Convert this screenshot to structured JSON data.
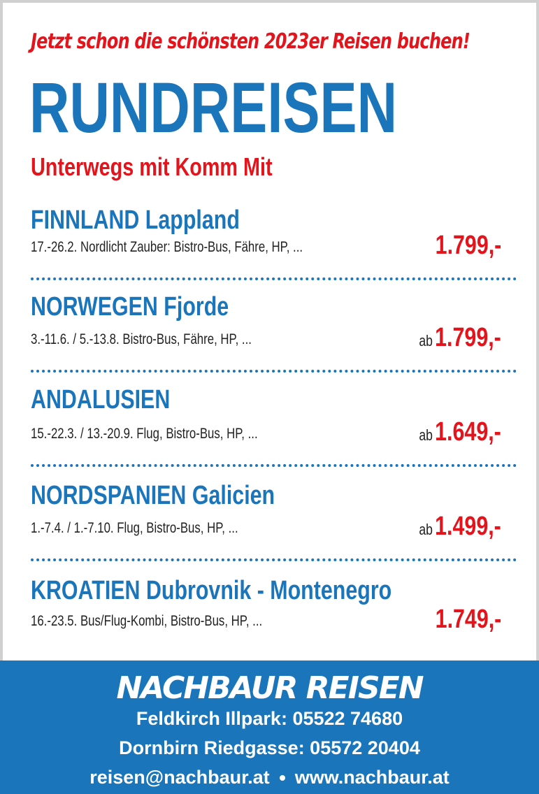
{
  "header": {
    "tagline": "Jetzt schon die schönsten 2023er Reisen buchen!",
    "title": "RUNDREISEN",
    "subtitle": "Unterwegs mit Komm Mit"
  },
  "trips": [
    {
      "name": "FINNLAND Lappland",
      "details": "17.-26.2. Nordlicht Zauber: Bistro-Bus, Fähre, HP, ...",
      "price": "1.799,-"
    },
    {
      "name": "NORWEGEN Fjorde",
      "details": "3.-11.6. / 5.-13.8. Bistro-Bus, Fähre, HP, ...",
      "prefix": "ab",
      "price": "1.799,-"
    },
    {
      "name": "ANDALUSIEN",
      "details": "15.-22.3. / 13.-20.9. Flug, Bistro-Bus, HP, ...",
      "prefix": "ab",
      "price": "1.649,-"
    },
    {
      "name": "NORDSPANIEN Galicien",
      "details": "1.-7.4. / 1.-7.10. Flug, Bistro-Bus, HP, ...",
      "prefix": "ab",
      "price": "1.499,-"
    },
    {
      "name": "KROATIEN Dubrovnik - Montenegro",
      "details": "16.-23.5. Bus/Flug-Kombi, Bistro-Bus, HP, ...",
      "price": "1.749,-"
    }
  ],
  "footer": {
    "brand": "NACHBAUR REISEN",
    "lines": [
      "Feldkirch Illpark: 05522 74680",
      "Dornbirn Riedgasse: 05572 20404"
    ],
    "email": "reisen@nachbaur.at",
    "website": "www.nachbaur.at"
  }
}
